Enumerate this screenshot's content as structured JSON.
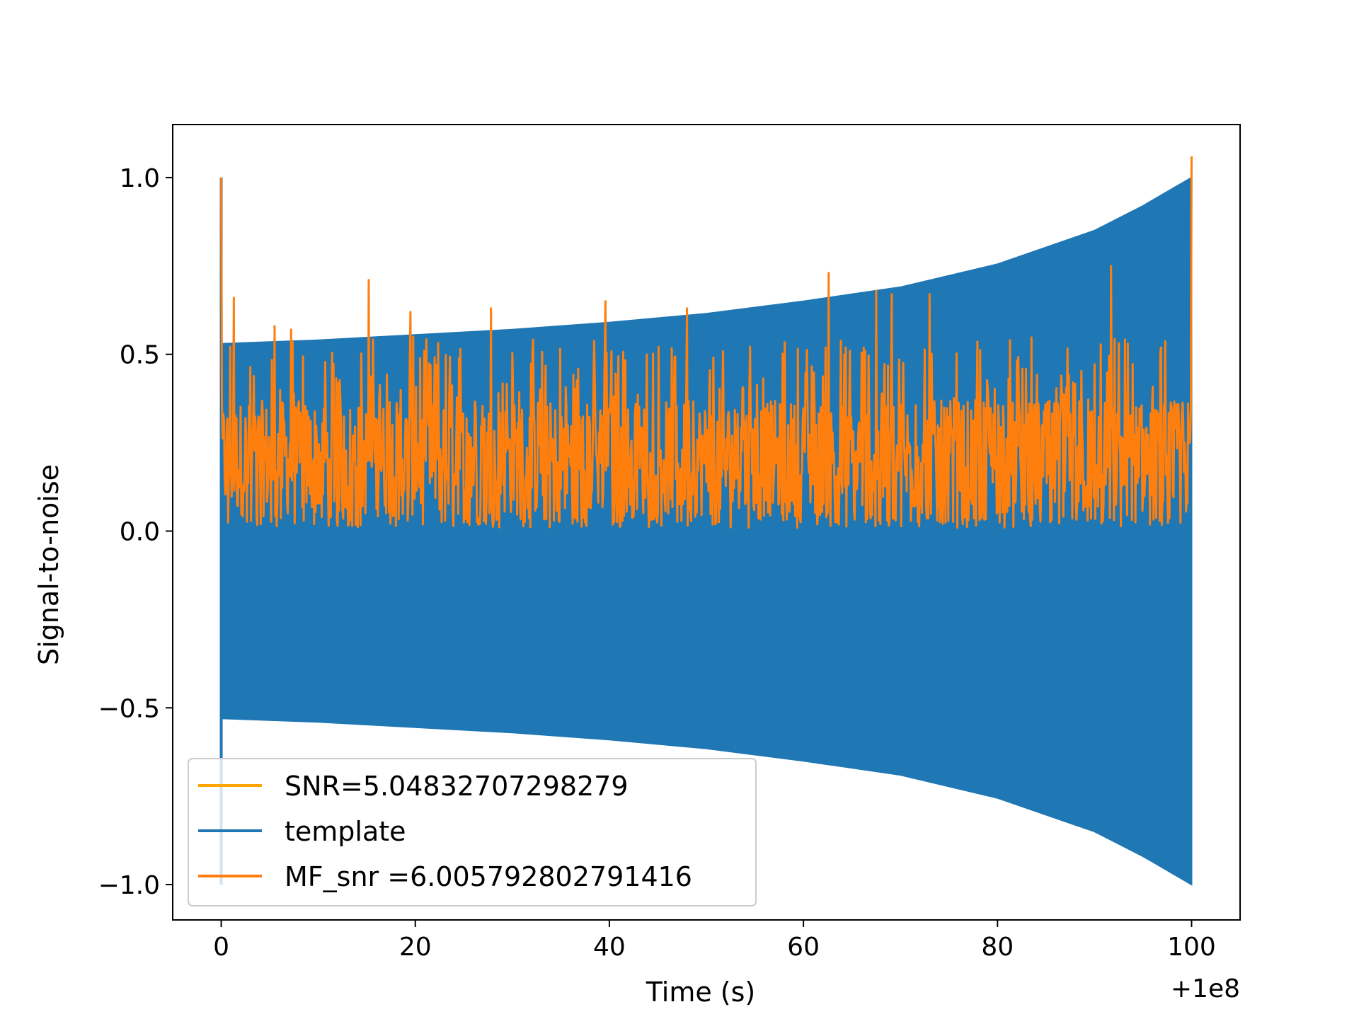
{
  "chart_data": {
    "type": "line",
    "title": "",
    "xlabel": "Time (s)",
    "ylabel": "Signal-to-noise",
    "x_offset_label": "+1e8",
    "xlim": [
      -5,
      105
    ],
    "ylim": [
      -1.1,
      1.15
    ],
    "x_ticks": [
      0,
      20,
      40,
      60,
      80,
      100
    ],
    "x_tick_labels": [
      "0",
      "20",
      "40",
      "60",
      "80",
      "100"
    ],
    "y_ticks": [
      -1.0,
      -0.5,
      0.0,
      0.5,
      1.0
    ],
    "y_tick_labels": [
      "−1.0",
      "−0.5",
      "0.0",
      "0.5",
      "1.0"
    ],
    "grid": false,
    "legend_position": "lower-left",
    "legend": [
      {
        "label": "SNR=5.04832707298279",
        "color": "#ffa500"
      },
      {
        "label": "template",
        "color": "#1f77b4"
      },
      {
        "label": " MF_snr =6.005792802791416",
        "color": "#ff7f0e"
      }
    ],
    "series": [
      {
        "name": "template",
        "color": "#1f77b4",
        "style": "chirp oscillation (filled band)",
        "x_range": [
          0,
          100
        ],
        "upper_envelope": {
          "x": [
            0,
            10,
            20,
            30,
            40,
            50,
            60,
            70,
            80,
            90,
            95,
            100
          ],
          "y": [
            0.53,
            0.54,
            0.555,
            0.57,
            0.59,
            0.615,
            0.65,
            0.69,
            0.755,
            0.85,
            0.92,
            1.0
          ]
        },
        "lower_envelope": {
          "x": [
            0,
            10,
            20,
            30,
            40,
            50,
            60,
            70,
            80,
            90,
            95,
            100
          ],
          "y": [
            -0.53,
            -0.54,
            -0.555,
            -0.57,
            -0.59,
            -0.615,
            -0.65,
            -0.69,
            -0.755,
            -0.85,
            -0.92,
            -1.0
          ]
        },
        "spikes": [
          {
            "x": 0.0,
            "y_min": -1.0,
            "y_max": 1.0
          }
        ]
      },
      {
        "name": "MF_snr =6.005792802791416",
        "color": "#ff7f0e",
        "style": "noisy SNR time series",
        "x_range": [
          0,
          100
        ],
        "baseline_range": [
          0.0,
          0.45
        ],
        "peaks": [
          {
            "x": 0.0,
            "y": 1.0
          },
          {
            "x": 1.3,
            "y": 0.66
          },
          {
            "x": 5.5,
            "y": 0.58
          },
          {
            "x": 7.2,
            "y": 0.57
          },
          {
            "x": 15.2,
            "y": 0.71
          },
          {
            "x": 19.5,
            "y": 0.62
          },
          {
            "x": 27.8,
            "y": 0.63
          },
          {
            "x": 39.6,
            "y": 0.65
          },
          {
            "x": 48.0,
            "y": 0.63
          },
          {
            "x": 62.6,
            "y": 0.73
          },
          {
            "x": 67.5,
            "y": 0.68
          },
          {
            "x": 69.1,
            "y": 0.67
          },
          {
            "x": 73.0,
            "y": 0.67
          },
          {
            "x": 91.7,
            "y": 0.75
          },
          {
            "x": 100.0,
            "y": 1.06
          }
        ]
      }
    ]
  }
}
